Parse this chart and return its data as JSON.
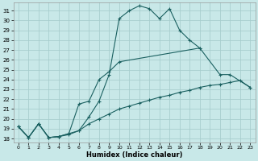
{
  "xlabel": "Humidex (Indice chaleur)",
  "background_color": "#c8e8e8",
  "grid_color": "#a8cece",
  "line_color": "#1a6060",
  "xlim": [
    -0.5,
    23.5
  ],
  "ylim": [
    17.6,
    31.8
  ],
  "xticks": [
    0,
    1,
    2,
    3,
    4,
    5,
    6,
    7,
    8,
    9,
    10,
    11,
    12,
    13,
    14,
    15,
    16,
    17,
    18,
    19,
    20,
    21,
    22,
    23
  ],
  "yticks": [
    18,
    19,
    20,
    21,
    22,
    23,
    24,
    25,
    26,
    27,
    28,
    29,
    30,
    31
  ],
  "line1_x": [
    0,
    1,
    2,
    3,
    4,
    5,
    6,
    7,
    8,
    9,
    10,
    11,
    12,
    13,
    14,
    15,
    16,
    17,
    18
  ],
  "line1_y": [
    19.2,
    18.1,
    19.5,
    18.1,
    18.2,
    18.5,
    18.8,
    20.2,
    21.8,
    24.5,
    30.2,
    31.0,
    31.5,
    31.2,
    30.2,
    31.2,
    29.0,
    28.0,
    27.2
  ],
  "line2_x": [
    0,
    1,
    2,
    3,
    4,
    5,
    6,
    7,
    8,
    9,
    10,
    18,
    20,
    21,
    23
  ],
  "line2_y": [
    19.2,
    18.1,
    19.5,
    18.1,
    18.2,
    18.5,
    21.5,
    21.8,
    24.0,
    24.8,
    25.8,
    27.2,
    24.5,
    24.5,
    23.2
  ],
  "line3_x": [
    0,
    1,
    2,
    3,
    4,
    5,
    6,
    7,
    8,
    9,
    10,
    11,
    12,
    13,
    14,
    15,
    16,
    17,
    18,
    19,
    20,
    21,
    22,
    23
  ],
  "line3_y": [
    19.2,
    18.1,
    19.5,
    18.1,
    18.2,
    18.4,
    18.8,
    19.5,
    20.0,
    20.5,
    21.0,
    21.3,
    21.6,
    21.9,
    22.2,
    22.4,
    22.7,
    22.9,
    23.2,
    23.4,
    23.5,
    23.7,
    23.9,
    23.2
  ]
}
